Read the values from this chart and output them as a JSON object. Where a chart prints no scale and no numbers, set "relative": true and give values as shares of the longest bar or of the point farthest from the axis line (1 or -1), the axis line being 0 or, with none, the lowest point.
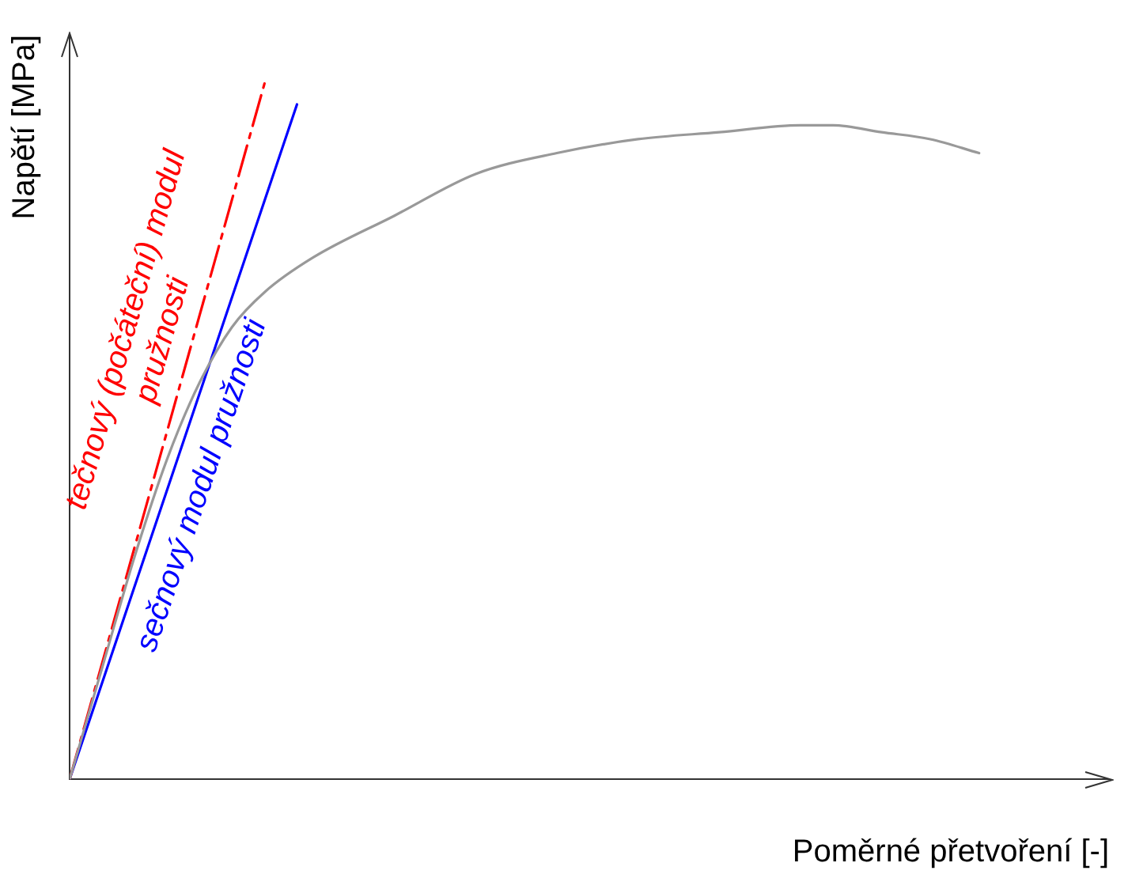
{
  "chart_data": {
    "type": "line",
    "relative": true,
    "xlabel": "Poměrné přetvoření [-]",
    "ylabel": "Napětí [MPa]",
    "legend": false,
    "grid": false,
    "marker": "none",
    "categories": [
      null,
      null,
      null,
      null,
      null,
      null,
      null,
      null,
      null,
      null,
      null,
      null,
      null,
      null,
      null,
      null,
      null,
      null,
      null,
      null,
      null,
      null,
      null,
      null,
      null,
      null,
      null,
      null,
      null,
      null,
      null,
      null,
      null,
      null,
      null,
      null,
      null,
      null,
      null,
      null,
      null,
      null,
      null,
      null,
      null,
      null,
      null,
      null,
      null,
      null,
      null,
      null,
      null,
      null,
      null,
      null,
      null,
      null,
      null,
      null,
      null,
      null,
      null,
      null,
      null
    ],
    "series": [
      {
        "color": "#999999",
        "line_style": "solid",
        "values": [
          0,
          null,
          0.16,
          null,
          0.32,
          null,
          0.46,
          null,
          0.57,
          null,
          0.65,
          null,
          0.7,
          null,
          null,
          0.75,
          null,
          null,
          null,
          null,
          0.81,
          null,
          null,
          null,
          null,
          0.87,
          null,
          null,
          null,
          null,
          0.9,
          null,
          null,
          null,
          null,
          0.92,
          null,
          null,
          null,
          null,
          0.93,
          null,
          null,
          null,
          null,
          0.94,
          null,
          0.94,
          null,
          null,
          0.93,
          null,
          null,
          0.92,
          null,
          null,
          0.9,
          null,
          null,
          null,
          null,
          null,
          null,
          null,
          null
        ]
      },
      {
        "name": "tečnový (počáteční) modul pružnosti",
        "color": "#ff0000",
        "line_style": "dashed",
        "values": [
          0,
          null,
          null,
          null,
          null,
          null,
          null,
          null,
          null,
          null,
          null,
          null,
          1,
          null,
          null,
          null,
          null,
          null,
          null,
          null,
          null,
          null,
          null,
          null,
          null,
          null,
          null,
          null,
          null,
          null,
          null,
          null,
          null,
          null,
          null,
          null,
          null,
          null,
          null,
          null,
          null,
          null,
          null,
          null,
          null,
          null,
          null,
          null,
          null,
          null,
          null,
          null,
          null,
          null,
          null,
          null,
          null,
          null,
          null,
          null,
          null,
          null,
          null,
          null,
          null
        ]
      },
      {
        "name": "sečnový modul pružnosti",
        "color": "#0000ff",
        "line_style": "solid",
        "values": [
          0,
          null,
          null,
          null,
          null,
          null,
          null,
          null,
          null,
          null,
          null,
          null,
          null,
          null,
          0.97,
          null,
          null,
          null,
          null,
          null,
          null,
          null,
          null,
          null,
          null,
          null,
          null,
          null,
          null,
          null,
          null,
          null,
          null,
          null,
          null,
          null,
          null,
          null,
          null,
          null,
          null,
          null,
          null,
          null,
          null,
          null,
          null,
          null,
          null,
          null,
          null,
          null,
          null,
          null,
          null,
          null,
          null,
          null,
          null,
          null,
          null,
          null,
          null,
          null,
          null
        ]
      }
    ]
  }
}
